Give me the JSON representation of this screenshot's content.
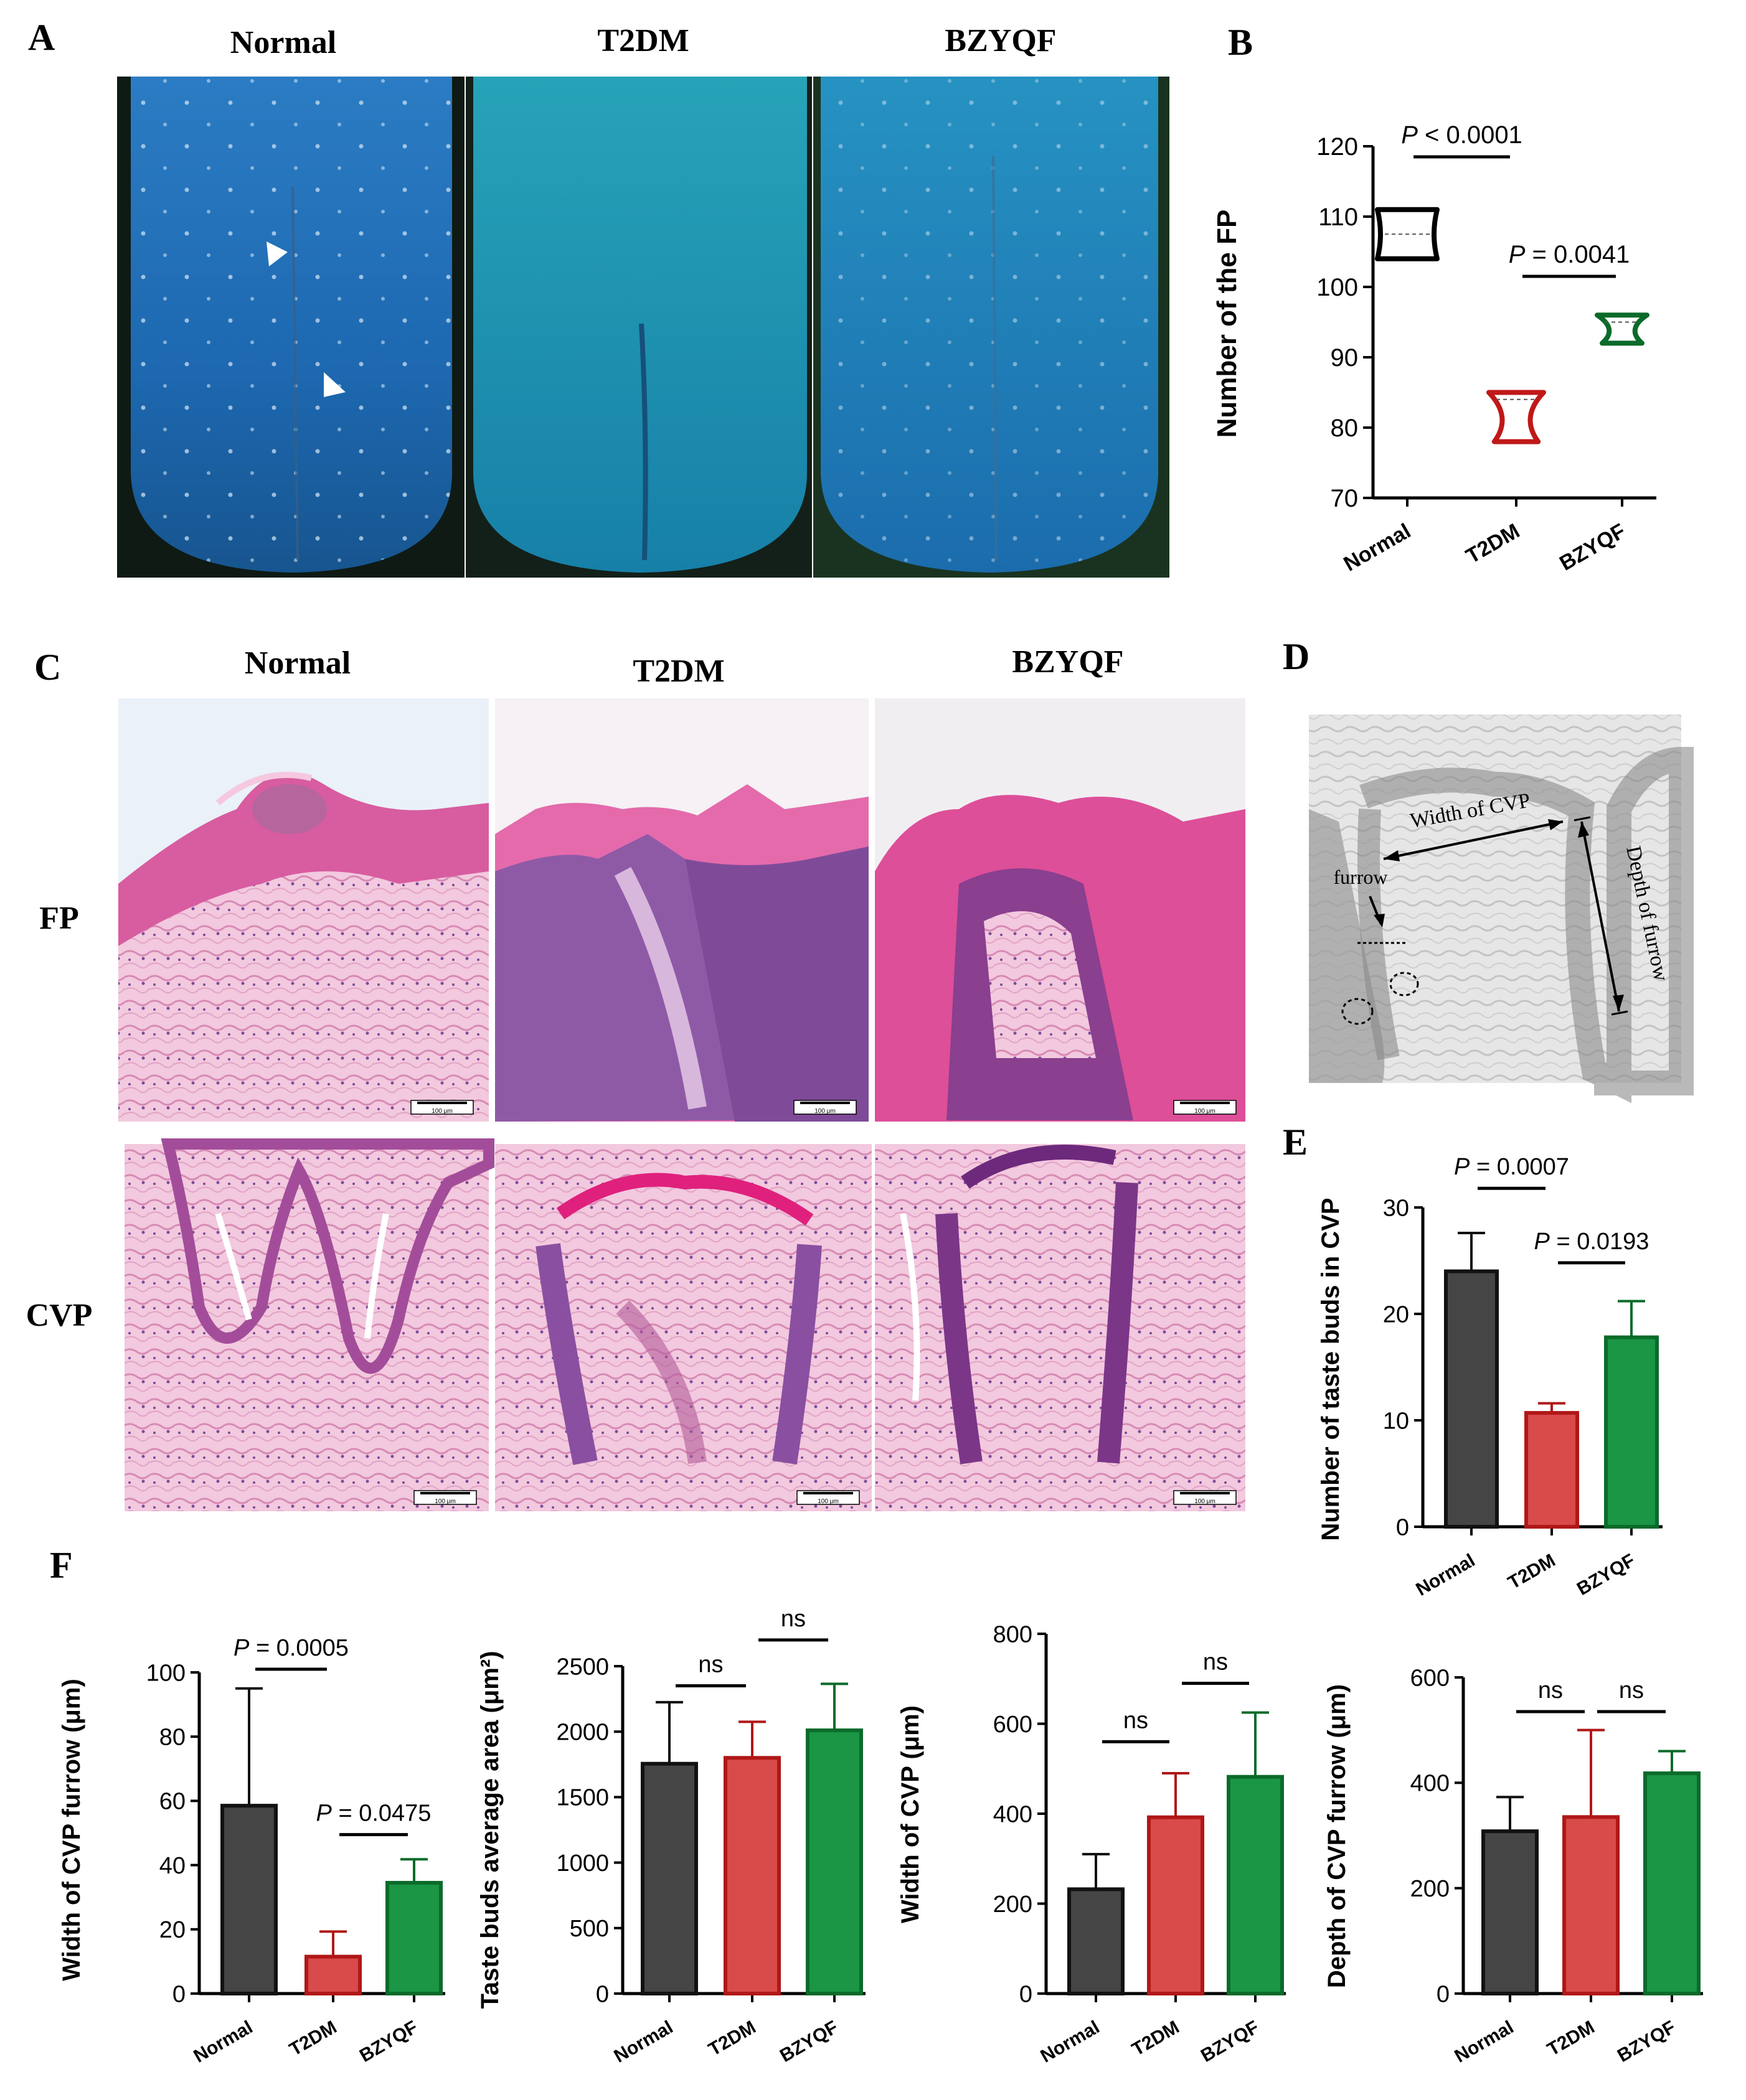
{
  "panel_letters": {
    "a": "A",
    "b": "B",
    "c": "C",
    "d": "D",
    "e": "E",
    "f": "F"
  },
  "group_labels": [
    "Normal",
    "T2DM",
    "BZYQF"
  ],
  "row_labels": [
    "FP",
    "CVP"
  ],
  "scale_bar_label": "100 μm",
  "colors": {
    "normal": "#454545",
    "t2dm": "#d94a4a",
    "t2dm_edge": "#b01818",
    "bzyqf": "#1a9645",
    "bzyqf_edge": "#0b6b2a",
    "tongue_blue": "#1e6fb8",
    "he_pink": "#e79ac2",
    "he_purple": "#8a4fa0"
  },
  "panel_d": {
    "width_label": "Width of CVP",
    "depth_label": "Depth of furrow",
    "furrow_label": "furrow"
  },
  "chart_data": [
    {
      "id": "B",
      "type": "violin",
      "categories": [
        "Normal",
        "T2DM",
        "BZYQF"
      ],
      "ylabel": "Number of the FP",
      "ylim": [
        70,
        120
      ],
      "yticks": [
        70,
        80,
        90,
        100,
        110,
        120
      ],
      "series": [
        {
          "name": "Normal",
          "min": 104,
          "max": 111,
          "median": 107.5,
          "color": "#000000"
        },
        {
          "name": "T2DM",
          "min": 78,
          "max": 85,
          "median": 84,
          "color": "#c01818"
        },
        {
          "name": "BZYQF",
          "min": 92,
          "max": 96,
          "median": 95,
          "color": "#0b6b2a"
        }
      ],
      "annotations": [
        {
          "text": "P < 0.0001",
          "from": 0,
          "to": 1,
          "y": 118.5
        },
        {
          "text": "P = 0.0041",
          "from": 1,
          "to": 2,
          "y": 101.5
        }
      ]
    },
    {
      "id": "E",
      "type": "bar",
      "categories": [
        "Normal",
        "T2DM",
        "BZYQF"
      ],
      "values": [
        24,
        10.7,
        17.8
      ],
      "errors": [
        3.6,
        0.9,
        3.4
      ],
      "ylabel": "Number of taste buds in  CVP",
      "ylim": [
        0,
        30
      ],
      "yticks": [
        0,
        10,
        20,
        30
      ],
      "annotations": [
        {
          "text": "P = 0.0007",
          "from": 0,
          "to": 1,
          "y": 31.8
        },
        {
          "text": "P = 0.0193",
          "from": 1,
          "to": 2,
          "y": 24.8
        }
      ]
    },
    {
      "id": "F1",
      "type": "bar",
      "categories": [
        "Normal",
        "T2DM",
        "BZYQF"
      ],
      "values": [
        58.5,
        11.5,
        34.5
      ],
      "errors": [
        36.5,
        7.8,
        7.3
      ],
      "ylabel": "Width of  CVP furrow (μm)",
      "ylim": [
        0,
        100
      ],
      "yticks": [
        0,
        20,
        40,
        60,
        80,
        100
      ],
      "annotations": [
        {
          "text": "P = 0.0005",
          "from": 0,
          "to": 1,
          "y": 101
        },
        {
          "text": "P = 0.0475",
          "from": 1,
          "to": 2,
          "y": 49.5
        }
      ]
    },
    {
      "id": "F2",
      "type": "bar",
      "categories": [
        "Normal",
        "T2DM",
        "BZYQF"
      ],
      "values": [
        1755,
        1800,
        2010
      ],
      "errors": [
        470,
        275,
        355
      ],
      "ylabel": "Taste buds average area (μm²)",
      "ylim": [
        0,
        2500
      ],
      "yticks": [
        0,
        500,
        1000,
        1500,
        2000,
        2500
      ],
      "annotations": [
        {
          "text": "ns",
          "from": 0,
          "to": 1,
          "y": 2350
        },
        {
          "text": "ns",
          "from": 1,
          "to": 2,
          "y": 2700
        }
      ]
    },
    {
      "id": "F3",
      "type": "bar",
      "categories": [
        "Normal",
        "T2DM",
        "BZYQF"
      ],
      "values": [
        232,
        392,
        482
      ],
      "errors": [
        78,
        98,
        143
      ],
      "ylabel": "Width of  CVP (μm)",
      "ylim": [
        0,
        800
      ],
      "yticks": [
        0,
        200,
        400,
        600,
        800
      ],
      "annotations": [
        {
          "text": "ns",
          "from": 0,
          "to": 1,
          "y": 560
        },
        {
          "text": "ns",
          "from": 1,
          "to": 2,
          "y": 690
        }
      ]
    },
    {
      "id": "F4",
      "type": "bar",
      "categories": [
        "Normal",
        "T2DM",
        "BZYQF"
      ],
      "values": [
        308,
        335,
        418
      ],
      "errors": [
        65,
        165,
        42
      ],
      "ylabel": "Depth of CVP furrow (μm)",
      "ylim": [
        0,
        600
      ],
      "yticks": [
        0,
        200,
        400,
        600
      ],
      "annotations": [
        {
          "text": "ns",
          "from": 0,
          "to": 1,
          "y": 535
        },
        {
          "text": "ns",
          "from": 1,
          "to": 2,
          "y": 535
        }
      ]
    }
  ]
}
